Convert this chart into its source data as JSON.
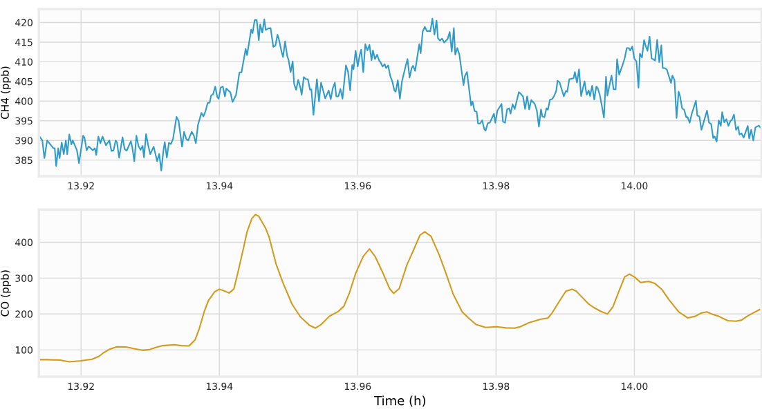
{
  "chart_data": [
    {
      "type": "line",
      "ylabel": "CH4 (ppb)",
      "xlim": [
        13.9139,
        14.0184
      ],
      "xticks": [
        {
          "value": 13.92,
          "label": "13.92"
        },
        {
          "value": 13.94,
          "label": "13.94"
        },
        {
          "value": 13.96,
          "label": "13.96"
        },
        {
          "value": 13.98,
          "label": "13.98"
        },
        {
          "value": 14.0,
          "label": "14.00"
        }
      ],
      "ylim": [
        380.9,
        423.4
      ],
      "yticks": [
        385,
        390,
        395,
        400,
        405,
        410,
        415,
        420
      ],
      "grid": true,
      "marker": "none",
      "line_style": "solid",
      "series": [
        {
          "color": "#2e9bcb",
          "x": [
            13.914,
            13.9144,
            13.9147,
            13.9151,
            13.916,
            13.9162,
            13.9164,
            13.9167,
            13.9169,
            13.9172,
            13.9175,
            13.9178,
            13.918,
            13.9183,
            13.9186,
            13.9188,
            13.9194,
            13.9197,
            13.9203,
            13.9205,
            13.9208,
            13.9211,
            13.9217,
            13.922,
            13.9222,
            13.9225,
            13.9228,
            13.9231,
            13.9236,
            13.9241,
            13.9244,
            13.9247,
            13.925,
            13.9252,
            13.9255,
            13.926,
            13.9263,
            13.9266,
            13.9272,
            13.9274,
            13.9277,
            13.928,
            13.9283,
            13.9286,
            13.9289,
            13.9291,
            13.9294,
            13.9297,
            13.93,
            13.9305,
            13.931,
            13.9313,
            13.9316,
            13.9319,
            13.9321,
            13.9324,
            13.9327,
            13.933,
            13.9333,
            13.9338,
            13.9341,
            13.9346,
            13.9349,
            13.9352,
            13.9355,
            13.936,
            13.9363,
            13.9366,
            13.9369,
            13.9374,
            13.9377,
            13.938,
            13.9383,
            13.9386,
            13.9388,
            13.9391,
            13.9394,
            13.9397,
            13.9399,
            13.9402,
            13.9405,
            13.9408,
            13.941,
            13.9416,
            13.9419,
            13.9424,
            13.9429,
            13.9432,
            13.9438,
            13.944,
            13.9446,
            13.9448,
            13.9451,
            13.9454,
            13.9457,
            13.9459,
            13.9462,
            13.9465,
            13.9467,
            13.947,
            13.9474,
            13.9478,
            13.9481,
            13.9484,
            13.9486,
            13.949,
            13.9492,
            13.9495,
            13.9498,
            13.95,
            13.9503,
            13.9506,
            13.9508,
            13.9511,
            13.9514,
            13.9517,
            13.9519,
            13.9522,
            13.9525,
            13.9528,
            13.9531,
            13.9533,
            13.9536,
            13.9541,
            13.9544,
            13.9547,
            13.9553,
            13.9558,
            13.9561,
            13.9564,
            13.9567,
            13.9569,
            13.9572,
            13.9575,
            13.9578,
            13.9583,
            13.9586,
            13.9589,
            13.9592,
            13.9594,
            13.9597,
            13.96,
            13.9603,
            13.9605,
            13.9608,
            13.9611,
            13.9614,
            13.9617,
            13.962,
            13.9622,
            13.9625,
            13.9628,
            13.9631,
            13.9633,
            13.9636,
            13.9639,
            13.9641,
            13.9644,
            13.9647,
            13.965,
            13.9653,
            13.9655,
            13.9658,
            13.9661,
            13.9664,
            13.9669,
            13.9672,
            13.9675,
            13.9678,
            13.968,
            13.9683,
            13.9689,
            13.9691,
            13.9694,
            13.9697,
            13.97,
            13.9705,
            13.9708,
            13.9711,
            13.9714,
            13.9716,
            13.9719,
            13.9722,
            13.9725,
            13.973,
            13.9733,
            13.9736,
            13.9739,
            13.9741,
            13.9744,
            13.9747,
            13.9753,
            13.9755,
            13.9758,
            13.9764,
            13.9766,
            13.9769,
            13.9772,
            13.9774,
            13.9777,
            13.978,
            13.9783,
            13.9785,
            13.9788,
            13.9791,
            13.9797,
            13.9799,
            13.9802,
            13.9808,
            13.981,
            13.9813,
            13.9816,
            13.9819,
            13.9821,
            13.9824,
            13.9827,
            13.9833,
            13.9835,
            13.9839,
            13.9842,
            13.9845,
            13.9848,
            13.9851,
            13.9856,
            13.9859,
            13.9862,
            13.9865,
            13.9867,
            13.987,
            13.9873,
            13.9875,
            13.9878,
            13.9881,
            13.9884,
            13.9887,
            13.9889,
            13.9892,
            13.9898,
            13.9901,
            13.9903,
            13.9906,
            13.9912,
            13.9914,
            13.9917,
            13.992,
            13.9923,
            13.9928,
            13.9931,
            13.9934,
            13.9936,
            13.9939,
            13.9942,
            13.9945,
            13.9947,
            13.995,
            13.9953,
            13.9956,
            13.9959,
            13.9961,
            13.9967,
            13.997,
            13.9973,
            13.9975,
            13.9978,
            13.9983,
            13.9986,
            13.9989,
            13.9992,
            13.9994,
            13.9997,
            14.0,
            14.0003,
            14.0006,
            14.0008,
            14.0011,
            14.0014,
            14.0017,
            14.0019,
            14.0022,
            14.0025,
            14.0027,
            14.003,
            14.0033,
            14.0036,
            14.0039,
            14.0041,
            14.0044,
            14.0047,
            14.0053,
            14.0055,
            14.0058,
            14.0061,
            14.0064,
            14.0066,
            14.0069,
            14.0072,
            14.0075,
            14.0077,
            14.008,
            14.0083,
            14.0089,
            14.0091,
            14.0094,
            14.0097,
            14.01,
            14.0105,
            14.0108,
            14.0111,
            14.0114,
            14.0116,
            14.0119,
            14.0122,
            14.0125,
            14.0127,
            14.013,
            14.0133,
            14.0136,
            14.0139,
            14.0141,
            14.0144,
            14.0147,
            14.015,
            14.0152,
            14.0155,
            14.0158,
            14.0164,
            14.0166,
            14.0169,
            14.0172,
            14.0175,
            14.018,
            14.0182
          ],
          "values": [
            391,
            390,
            385.5,
            390,
            388,
            388,
            383.5,
            388,
            385.5,
            389.5,
            386.5,
            390,
            386.5,
            391.5,
            389,
            390,
            387.5,
            384.2,
            391.2,
            390.7,
            387.5,
            388.5,
            387.5,
            388,
            386.3,
            391,
            389.3,
            391,
            388.8,
            390,
            387.3,
            387.5,
            390,
            389.5,
            385.6,
            390.8,
            387.8,
            387.4,
            389.8,
            388.3,
            384.7,
            391.2,
            388.6,
            387.6,
            388.6,
            385.7,
            391.6,
            388.8,
            386.5,
            388.4,
            384.7,
            386.6,
            382.3,
            387.3,
            389.6,
            385.6,
            389.4,
            389.1,
            390.4,
            396,
            395,
            388.4,
            392.2,
            390.4,
            390,
            392.2,
            391.3,
            389.3,
            393.9,
            397,
            396.1,
            397.5,
            399.5,
            399.6,
            401.4,
            401.8,
            403.7,
            401,
            400.6,
            403.5,
            403.7,
            401.2,
            403.2,
            402.2,
            399.8,
            401.5,
            407.3,
            407.3,
            413.3,
            411.7,
            418.2,
            417.3,
            420.6,
            420.6,
            415.5,
            419.5,
            417.4,
            420.8,
            418.1,
            418.4,
            418.6,
            413.8,
            414.1,
            416.9,
            415.8,
            412.5,
            411.2,
            415.2,
            411.5,
            410.5,
            407.4,
            410.1,
            404.4,
            402.9,
            405.4,
            403.5,
            401.6,
            406.1,
            405.6,
            405.6,
            402.9,
            403,
            396.5,
            405.6,
            399.9,
            404.7,
            400.7,
            402.7,
            400.5,
            403.3,
            404.7,
            401.2,
            401.2,
            403.1,
            400.6,
            409.1,
            407.5,
            402.7,
            409.2,
            408.1,
            412.8,
            408.8,
            411.8,
            413.1,
            407.4,
            414.5,
            412.9,
            414.3,
            410.4,
            412.9,
            410.7,
            411.8,
            410.3,
            409.9,
            408.8,
            409.4,
            408.4,
            409.1,
            406.4,
            405,
            402.7,
            402.4,
            405.3,
            400.6,
            405,
            408.7,
            410.7,
            406,
            408.4,
            409,
            407.7,
            414.5,
            412.2,
            417.7,
            418.9,
            417.8,
            417.8,
            421,
            416.9,
            420.5,
            416,
            415.4,
            415.9,
            414.9,
            415.8,
            417.6,
            412.6,
            418.6,
            411.8,
            413.5,
            411.8,
            404.1,
            406.4,
            407.4,
            398.9,
            399.9,
            397.5,
            397.3,
            394.3,
            394.3,
            395.1,
            392.9,
            392.5,
            394.4,
            394.5,
            396.8,
            394.5,
            397.6,
            399.3,
            394.8,
            394.5,
            397.9,
            398.2,
            396.8,
            399.2,
            398,
            402.3,
            402,
            401.2,
            398,
            401.2,
            397.9,
            400.3,
            399.3,
            397.6,
            393.5,
            397.9,
            396.1,
            395.9,
            398.2,
            397.8,
            400.4,
            400.5,
            401.3,
            402.6,
            405.2,
            404.7,
            401.2,
            402.6,
            402.4,
            405.6,
            405.8,
            407.4,
            404.7,
            408.1,
            401.3,
            405,
            401.6,
            402.7,
            401.3,
            403.9,
            400.4,
            403.7,
            403.3,
            401.6,
            398.8,
            395.8,
            406.2,
            401.4,
            406.5,
            403,
            403,
            410.7,
            406.7,
            409.2,
            410.9,
            413.5,
            413.5,
            412.9,
            413.9,
            410.8,
            410.1,
            403.4,
            412.1,
            411.1,
            415.5,
            413.7,
            412.8,
            416.4,
            410.8,
            410.7,
            410.3,
            415.6,
            409.9,
            414.2,
            408.4,
            408.4,
            408,
            404.6,
            406.5,
            405.4,
            395.7,
            402.4,
            401.3,
            398.2,
            397.8,
            395.9,
            395.9,
            394.5,
            396.8,
            400.1,
            396.3,
            396.1,
            392.7,
            394.5,
            397.6,
            394.5,
            394.2,
            390.6,
            391,
            389.7,
            395.1,
            393.7,
            397.2,
            394.6,
            395.4,
            393.7,
            395,
            395.2,
            396.6,
            392.7,
            393.5,
            391.5,
            391.8,
            390.7,
            393.7,
            390.5,
            392.7,
            390,
            393.3,
            393.8,
            393.3
          ]
        }
      ]
    },
    {
      "type": "line",
      "ylabel": "CO (ppb)",
      "xlabel": "Time (h)",
      "xlim": [
        13.9139,
        14.0184
      ],
      "xticks": [
        {
          "value": 13.92,
          "label": "13.92"
        },
        {
          "value": 13.94,
          "label": "13.94"
        },
        {
          "value": 13.96,
          "label": "13.96"
        },
        {
          "value": 13.98,
          "label": "13.98"
        },
        {
          "value": 14.0,
          "label": "14.00"
        }
      ],
      "ylim": [
        25,
        491
      ],
      "yticks": [
        100,
        200,
        300,
        400
      ],
      "grid": true,
      "marker": "none",
      "line_style": "solid",
      "series": [
        {
          "color": "#d49a1c",
          "x": [
            13.914,
            13.915,
            13.917,
            13.9183,
            13.92,
            13.9216,
            13.9226,
            13.9232,
            13.9242,
            13.9252,
            13.9265,
            13.9279,
            13.9289,
            13.9299,
            13.9308,
            13.9318,
            13.9335,
            13.9345,
            13.9356,
            13.9365,
            13.9371,
            13.9378,
            13.9384,
            13.9393,
            13.94,
            13.9408,
            13.9414,
            13.9421,
            13.9427,
            13.9434,
            13.944,
            13.9447,
            13.9452,
            13.9457,
            13.9467,
            13.9472,
            13.9482,
            13.9492,
            13.9505,
            13.9517,
            13.953,
            13.9539,
            13.9547,
            13.9559,
            13.9572,
            13.958,
            13.9588,
            13.9597,
            13.9608,
            13.9617,
            13.9625,
            13.9635,
            13.9646,
            13.9652,
            13.966,
            13.9671,
            13.9681,
            13.969,
            13.9697,
            13.9706,
            13.9718,
            13.9728,
            13.9738,
            13.9751,
            13.9761,
            13.9771,
            13.9785,
            13.9801,
            13.9814,
            13.9827,
            13.9835,
            13.9848,
            13.9865,
            13.9875,
            13.9881,
            13.9891,
            13.9901,
            13.991,
            13.9916,
            13.9924,
            13.9934,
            13.9941,
            13.9951,
            13.9961,
            13.9969,
            13.9978,
            13.9986,
            13.9993,
            14.0001,
            14.0009,
            14.0016,
            14.0021,
            14.003,
            14.004,
            14.005,
            14.0064,
            14.0077,
            14.0088,
            14.0097,
            14.0105,
            14.0112,
            14.0122,
            14.0135,
            14.0147,
            14.0155,
            14.0163,
            14.0173,
            14.0181
          ],
          "values": [
            72.7,
            72.7,
            71.4,
            66.5,
            69.6,
            74,
            82,
            91.3,
            102.4,
            108.6,
            108,
            102.4,
            98.7,
            100.6,
            106.8,
            111.7,
            114.2,
            111.7,
            111.1,
            128.5,
            159.5,
            206,
            237,
            261.7,
            269.2,
            263.6,
            258.6,
            269.8,
            317.5,
            376.4,
            429.1,
            466.3,
            477.5,
            472.5,
            438.4,
            413.6,
            339.2,
            286.5,
            227.6,
            192.3,
            168.8,
            160.7,
            170.6,
            193.6,
            207.2,
            221.5,
            258.6,
            313.2,
            360.9,
            381.4,
            360.9,
            320.6,
            271,
            257.4,
            271,
            336.1,
            379.5,
            419.8,
            429.1,
            416.7,
            364,
            311.3,
            255.5,
            206,
            187.4,
            170.6,
            162.6,
            164.4,
            161.3,
            160.7,
            164.4,
            176.2,
            185.5,
            188.6,
            202.9,
            233.9,
            263.6,
            269.2,
            263.6,
            247.5,
            227.6,
            218.4,
            207.8,
            199.8,
            220.2,
            264.8,
            303.3,
            311.3,
            302,
            287.8,
            289.6,
            290.8,
            284.7,
            267.9,
            240,
            206,
            189.2,
            193.6,
            202.9,
            206,
            199.8,
            193.6,
            181.2,
            180,
            183,
            193.6,
            204.1,
            212.2
          ]
        }
      ]
    }
  ]
}
